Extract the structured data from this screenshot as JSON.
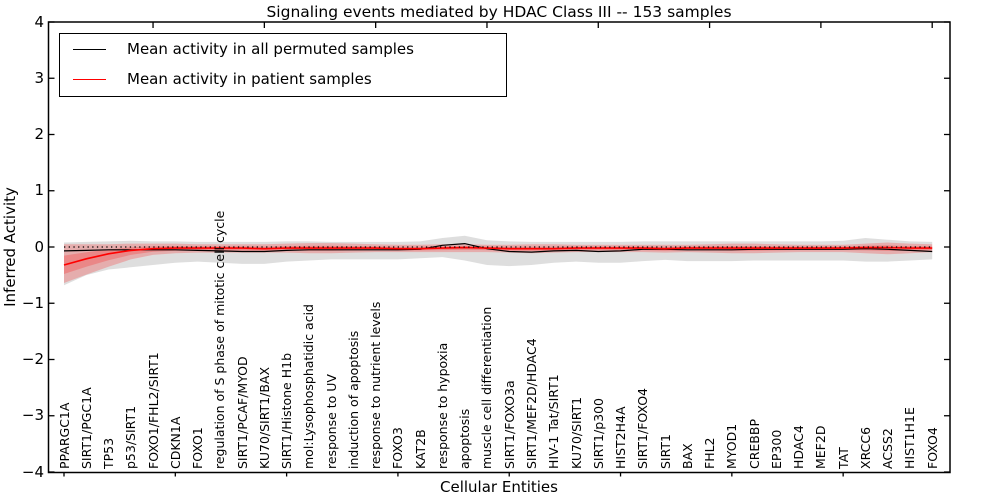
{
  "title": "Signaling events mediated by HDAC Class III -- 153 samples",
  "legend": {
    "position": "upper left",
    "items": [
      {
        "label": "Mean activity in all permuted samples",
        "color": "#000000"
      },
      {
        "label": "Mean activity in patient samples",
        "color": "#ff0000"
      }
    ]
  },
  "axes": {
    "ylabel": "Inferred Activity",
    "xlabel": "Cellular Entities",
    "yticks": [
      {
        "label": "4",
        "value": 4
      },
      {
        "label": "3",
        "value": 3
      },
      {
        "label": "2",
        "value": 2
      },
      {
        "label": "1",
        "value": 1
      },
      {
        "label": "0",
        "value": 0
      },
      {
        "label": "−1",
        "value": -1
      },
      {
        "label": "−2",
        "value": -2
      },
      {
        "label": "−3",
        "value": -3
      },
      {
        "label": "−4",
        "value": -4
      }
    ]
  },
  "chart_data": {
    "type": "line",
    "title": "Signaling events mediated by HDAC Class III -- 153 samples",
    "xlabel": "Cellular Entities",
    "ylabel": "Inferred Activity",
    "ylim": [
      -4,
      4
    ],
    "grid": false,
    "legend_position": "upper left",
    "reference_line": {
      "y": 0,
      "style": "dotted",
      "color": "#000000"
    },
    "band_colors": {
      "permuted": "rgba(0,0,0,0.13)",
      "patient": "rgba(255,0,0,0.22)"
    },
    "categories": [
      "PPARGC1A",
      "SIRT1/PGC1A",
      "TP53",
      "p53/SIRT1",
      "FOXO1/FHL2/SIRT1",
      "CDKN1A",
      "FOXO1",
      "regulation of S phase of mitotic cell cycle",
      "SIRT1/PCAF/MYOD",
      "KU70/SIRT1/BAX",
      "SIRT1/Histone H1b",
      "mol:Lysophosphatidic acid",
      "response to UV",
      "induction of apoptosis",
      "response to nutrient levels",
      "FOXO3",
      "KAT2B",
      "response to hypoxia",
      "apoptosis",
      "muscle cell differentiation",
      "SIRT1/FOXO3a",
      "SIRT1/MEF2D/HDAC4",
      "HIV-1 Tat/SIRT1",
      "KU70/SIRT1",
      "SIRT1/p300",
      "HIST2H4A",
      "SIRT1/FOXO4",
      "SIRT1",
      "BAX",
      "FHL2",
      "MYOD1",
      "CREBBP",
      "EP300",
      "HDAC4",
      "MEF2D",
      "TAT",
      "XRCC6",
      "ACSS2",
      "HIST1H1E",
      "FOXO4"
    ],
    "series": [
      {
        "name": "Mean activity in all permuted samples",
        "color": "#000000",
        "values": [
          -0.07,
          -0.06,
          -0.05,
          -0.05,
          -0.05,
          -0.05,
          -0.06,
          -0.07,
          -0.08,
          -0.08,
          -0.06,
          -0.05,
          -0.05,
          -0.05,
          -0.05,
          -0.05,
          -0.04,
          0.03,
          0.06,
          -0.03,
          -0.08,
          -0.09,
          -0.07,
          -0.06,
          -0.08,
          -0.07,
          -0.04,
          -0.04,
          -0.05,
          -0.05,
          -0.05,
          -0.04,
          -0.04,
          -0.04,
          -0.04,
          -0.04,
          -0.03,
          -0.04,
          -0.06,
          -0.08
        ],
        "band_upper": [
          0.08,
          0.09,
          0.1,
          0.11,
          0.1,
          0.1,
          0.09,
          0.09,
          0.09,
          0.09,
          0.1,
          0.1,
          0.09,
          0.09,
          0.09,
          0.09,
          0.1,
          0.16,
          0.2,
          0.12,
          0.1,
          0.09,
          0.09,
          0.09,
          0.09,
          0.09,
          0.1,
          0.1,
          0.1,
          0.1,
          0.1,
          0.1,
          0.1,
          0.1,
          0.1,
          0.11,
          0.16,
          0.13,
          0.1,
          0.09
        ],
        "band_lower": [
          -0.68,
          -0.5,
          -0.4,
          -0.36,
          -0.32,
          -0.28,
          -0.26,
          -0.28,
          -0.3,
          -0.3,
          -0.26,
          -0.24,
          -0.22,
          -0.22,
          -0.22,
          -0.22,
          -0.2,
          -0.18,
          -0.24,
          -0.32,
          -0.34,
          -0.32,
          -0.28,
          -0.26,
          -0.28,
          -0.28,
          -0.25,
          -0.23,
          -0.25,
          -0.25,
          -0.25,
          -0.24,
          -0.24,
          -0.24,
          -0.24,
          -0.24,
          -0.26,
          -0.26,
          -0.24,
          -0.22
        ]
      },
      {
        "name": "Mean activity in patient samples",
        "color": "#ff0000",
        "values": [
          -0.32,
          -0.21,
          -0.12,
          -0.06,
          -0.03,
          -0.02,
          -0.02,
          -0.02,
          -0.02,
          -0.03,
          -0.02,
          -0.02,
          -0.02,
          -0.02,
          -0.02,
          -0.03,
          -0.03,
          -0.02,
          -0.01,
          -0.02,
          -0.03,
          -0.03,
          -0.03,
          -0.02,
          -0.02,
          -0.02,
          -0.02,
          -0.03,
          -0.02,
          -0.02,
          -0.02,
          -0.02,
          -0.02,
          -0.02,
          -0.02,
          -0.02,
          -0.01,
          -0.01,
          -0.02,
          -0.02
        ],
        "band_upper": [
          0.05,
          0.05,
          0.05,
          0.06,
          0.06,
          0.06,
          0.05,
          0.05,
          0.05,
          0.05,
          0.06,
          0.07,
          0.07,
          0.06,
          0.05,
          0.04,
          0.04,
          0.05,
          0.05,
          0.04,
          0.04,
          0.05,
          0.05,
          0.04,
          0.04,
          0.04,
          0.04,
          0.04,
          0.04,
          0.05,
          0.06,
          0.06,
          0.05,
          0.04,
          0.04,
          0.04,
          0.06,
          0.08,
          0.06,
          0.05
        ],
        "band_lower": [
          -0.64,
          -0.49,
          -0.35,
          -0.22,
          -0.14,
          -0.11,
          -0.1,
          -0.1,
          -0.1,
          -0.1,
          -0.1,
          -0.11,
          -0.11,
          -0.1,
          -0.09,
          -0.09,
          -0.09,
          -0.09,
          -0.09,
          -0.09,
          -0.1,
          -0.11,
          -0.1,
          -0.09,
          -0.09,
          -0.09,
          -0.09,
          -0.1,
          -0.09,
          -0.1,
          -0.11,
          -0.11,
          -0.1,
          -0.09,
          -0.09,
          -0.09,
          -0.11,
          -0.13,
          -0.11,
          -0.09
        ]
      }
    ]
  }
}
